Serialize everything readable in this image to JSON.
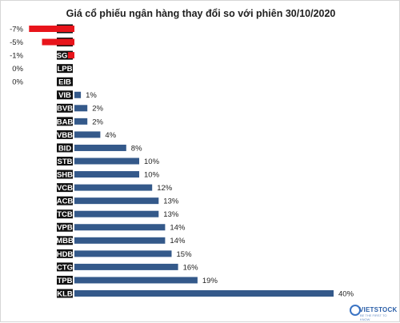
{
  "chart_data": {
    "type": "bar",
    "orientation": "horizontal",
    "title": "Giá cổ phiếu ngân hàng thay đổi so với phiên 30/10/2020",
    "categories": [
      "NAB",
      "NVB",
      "SGB",
      "LPB",
      "EIB",
      "VIB",
      "BVB",
      "BAB",
      "VBB",
      "BID",
      "STB",
      "SHB",
      "VCB",
      "ACB",
      "TCB",
      "VPB",
      "MBB",
      "HDB",
      "CTG",
      "TPB",
      "KLB"
    ],
    "values": [
      -7,
      -5,
      -1,
      0,
      0,
      1,
      2,
      2,
      4,
      8,
      10,
      10,
      12,
      13,
      13,
      14,
      14,
      15,
      16,
      19,
      40
    ],
    "value_labels": [
      "-7%",
      "-5%",
      "-1%",
      "0%",
      "0%",
      "1%",
      "2%",
      "2%",
      "4%",
      "8%",
      "10%",
      "10%",
      "12%",
      "13%",
      "13%",
      "14%",
      "14%",
      "15%",
      "16%",
      "19%",
      "40%"
    ],
    "unit": "%",
    "positive_color": "#34598a",
    "negative_color": "#e8141b",
    "grid": false,
    "legend": "none"
  },
  "watermark": {
    "text": "VIETSTOCK",
    "subtext": "BE THE FIRST TO KNOW",
    "color": "#2b5fa8"
  }
}
